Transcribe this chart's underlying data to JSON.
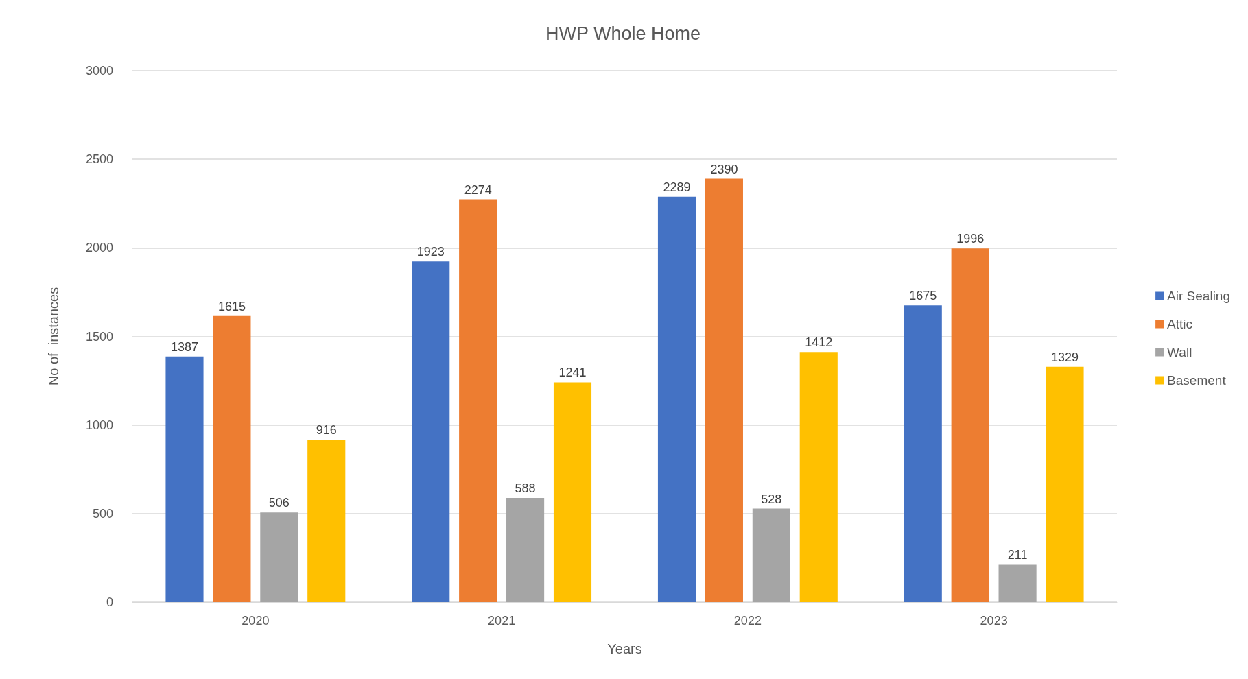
{
  "chart_data": {
    "type": "bar",
    "title": "HWP Whole Home",
    "xlabel": "Years",
    "ylabel": "No of  instances",
    "categories": [
      "2020",
      "2021",
      "2022",
      "2023"
    ],
    "series": [
      {
        "name": "Air Sealing",
        "color": "#4472c4",
        "values": [
          1387,
          1923,
          2289,
          1675
        ]
      },
      {
        "name": "Attic",
        "color": "#ed7d31",
        "values": [
          1615,
          2274,
          2390,
          1996
        ]
      },
      {
        "name": "Wall",
        "color": "#a5a5a5",
        "values": [
          506,
          588,
          528,
          211
        ]
      },
      {
        "name": "Basement",
        "color": "#ffc000",
        "values": [
          916,
          1241,
          1412,
          1329
        ]
      }
    ],
    "ylim": [
      0,
      3000
    ],
    "yticks": [
      0,
      500,
      1000,
      1500,
      2000,
      2500,
      3000
    ],
    "grid": "y",
    "legend": "right",
    "data_labels": true
  }
}
